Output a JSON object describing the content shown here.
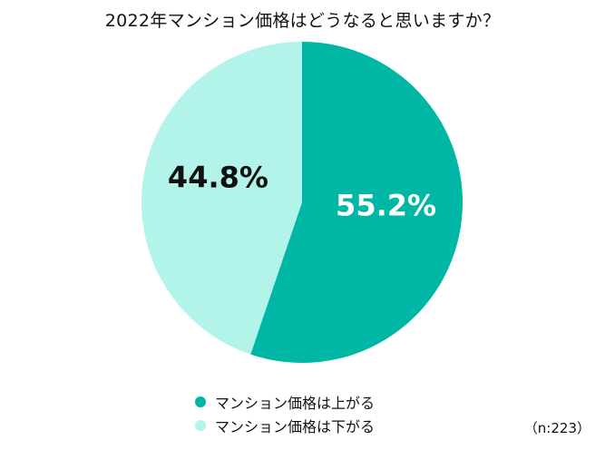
{
  "chart_data": {
    "type": "pie",
    "title": "2022年マンション価格はどうなると思いますか？",
    "slices": [
      {
        "label": "マンション価格は上がる",
        "value": 55.2,
        "display": "55.2%",
        "color": "#00b7a6",
        "text_color": "#ffffff"
      },
      {
        "label": "マンション価格は下がる",
        "value": 44.8,
        "display": "44.8%",
        "color": "#b2f4ea",
        "text_color": "#111111"
      }
    ],
    "legend_position": "bottom",
    "note": "（n:223）"
  }
}
